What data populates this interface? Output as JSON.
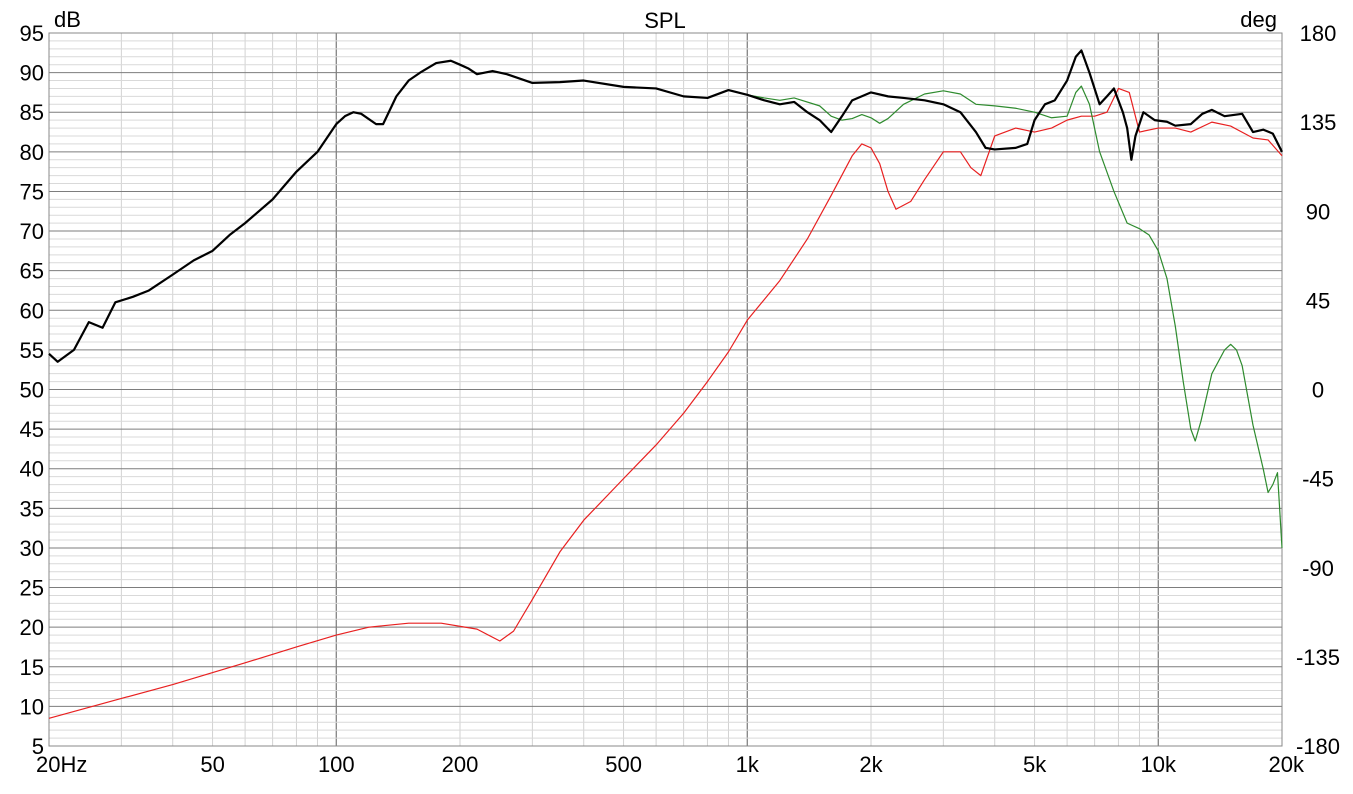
{
  "chart_data": {
    "type": "line",
    "title": "SPL",
    "ylabel": "dB",
    "y2label": "deg",
    "x_scale": "log",
    "xlim": [
      20,
      20000
    ],
    "ylim": [
      5,
      95
    ],
    "y2lim": [
      -180,
      180
    ],
    "grid": true,
    "x_ticks": [
      {
        "value": 20,
        "label": "20Hz"
      },
      {
        "value": 50,
        "label": "50"
      },
      {
        "value": 100,
        "label": "100"
      },
      {
        "value": 200,
        "label": "200"
      },
      {
        "value": 500,
        "label": "500"
      },
      {
        "value": 1000,
        "label": "1k"
      },
      {
        "value": 2000,
        "label": "2k"
      },
      {
        "value": 5000,
        "label": "5k"
      },
      {
        "value": 10000,
        "label": "10k"
      },
      {
        "value": 20000,
        "label": "20k"
      }
    ],
    "y_ticks": [
      "95",
      "90",
      "85",
      "80",
      "75",
      "70",
      "65",
      "60",
      "55",
      "50",
      "45",
      "40",
      "35",
      "30",
      "25",
      "20",
      "15",
      "10",
      "5"
    ],
    "y2_ticks": [
      "180",
      "135",
      "90",
      "45",
      "0",
      "-45",
      "-90",
      "-135",
      "-180"
    ],
    "series": [
      {
        "color": "#000000",
        "axis": "left",
        "points": [
          [
            20,
            54.5
          ],
          [
            21,
            53.5
          ],
          [
            23,
            55
          ],
          [
            25,
            58.5
          ],
          [
            27,
            57.8
          ],
          [
            29,
            61
          ],
          [
            32,
            61.7
          ],
          [
            35,
            62.5
          ],
          [
            40,
            64.5
          ],
          [
            45,
            66.3
          ],
          [
            50,
            67.5
          ],
          [
            55,
            69.5
          ],
          [
            60,
            71
          ],
          [
            70,
            74
          ],
          [
            80,
            77.5
          ],
          [
            90,
            80
          ],
          [
            100,
            83.5
          ],
          [
            105,
            84.5
          ],
          [
            110,
            85
          ],
          [
            115,
            84.8
          ],
          [
            125,
            83.5
          ],
          [
            130,
            83.5
          ],
          [
            140,
            87
          ],
          [
            150,
            89
          ],
          [
            160,
            90
          ],
          [
            175,
            91.2
          ],
          [
            190,
            91.5
          ],
          [
            200,
            91
          ],
          [
            210,
            90.5
          ],
          [
            220,
            89.8
          ],
          [
            240,
            90.2
          ],
          [
            260,
            89.8
          ],
          [
            300,
            88.7
          ],
          [
            350,
            88.8
          ],
          [
            400,
            89
          ],
          [
            500,
            88.2
          ],
          [
            600,
            88
          ],
          [
            700,
            87
          ],
          [
            800,
            86.8
          ],
          [
            900,
            87.8
          ],
          [
            1000,
            87.2
          ],
          [
            1100,
            86.5
          ],
          [
            1200,
            86
          ],
          [
            1300,
            86.3
          ],
          [
            1400,
            85
          ],
          [
            1500,
            84
          ],
          [
            1600,
            82.5
          ],
          [
            1700,
            84.5
          ],
          [
            1800,
            86.5
          ],
          [
            2000,
            87.5
          ],
          [
            2200,
            87
          ],
          [
            2400,
            86.8
          ],
          [
            2700,
            86.5
          ],
          [
            3000,
            86
          ],
          [
            3300,
            85
          ],
          [
            3600,
            82.5
          ],
          [
            3800,
            80.5
          ],
          [
            4000,
            80.3
          ],
          [
            4500,
            80.5
          ],
          [
            4800,
            81
          ],
          [
            5000,
            84
          ],
          [
            5300,
            86
          ],
          [
            5600,
            86.5
          ],
          [
            6000,
            89
          ],
          [
            6300,
            92
          ],
          [
            6500,
            92.8
          ],
          [
            6800,
            90
          ],
          [
            7200,
            86
          ],
          [
            7500,
            87
          ],
          [
            7800,
            88
          ],
          [
            8200,
            85
          ],
          [
            8400,
            83
          ],
          [
            8600,
            79
          ],
          [
            8800,
            82
          ],
          [
            9200,
            85
          ],
          [
            9800,
            84
          ],
          [
            10500,
            83.8
          ],
          [
            11000,
            83.3
          ],
          [
            12000,
            83.5
          ],
          [
            12800,
            84.8
          ],
          [
            13500,
            85.3
          ],
          [
            14500,
            84.5
          ],
          [
            16000,
            84.8
          ],
          [
            17000,
            82.5
          ],
          [
            18000,
            82.8
          ],
          [
            19000,
            82.3
          ],
          [
            20000,
            80
          ]
        ]
      },
      {
        "color": "#2e8b2e",
        "axis": "left",
        "points": [
          [
            20,
            54.5
          ],
          [
            21,
            53.5
          ],
          [
            23,
            55
          ],
          [
            25,
            58.5
          ],
          [
            27,
            57.8
          ],
          [
            29,
            61
          ],
          [
            32,
            61.7
          ],
          [
            35,
            62.5
          ],
          [
            40,
            64.5
          ],
          [
            45,
            66.3
          ],
          [
            50,
            67.5
          ],
          [
            55,
            69.5
          ],
          [
            60,
            71
          ],
          [
            70,
            74
          ],
          [
            80,
            77.5
          ],
          [
            90,
            80
          ],
          [
            100,
            83.5
          ],
          [
            105,
            84.5
          ],
          [
            110,
            85
          ],
          [
            115,
            84.8
          ],
          [
            125,
            83.5
          ],
          [
            130,
            83.5
          ],
          [
            140,
            87
          ],
          [
            150,
            89
          ],
          [
            160,
            90
          ],
          [
            175,
            91.2
          ],
          [
            190,
            91.5
          ],
          [
            200,
            91
          ],
          [
            210,
            90.5
          ],
          [
            220,
            89.8
          ],
          [
            240,
            90.2
          ],
          [
            260,
            89.8
          ],
          [
            300,
            88.7
          ],
          [
            350,
            88.8
          ],
          [
            400,
            89
          ],
          [
            500,
            88.2
          ],
          [
            600,
            88
          ],
          [
            700,
            87
          ],
          [
            800,
            86.8
          ],
          [
            900,
            87.8
          ],
          [
            1000,
            87.2
          ],
          [
            1100,
            86.8
          ],
          [
            1200,
            86.5
          ],
          [
            1300,
            86.8
          ],
          [
            1500,
            85.8
          ],
          [
            1600,
            84.5
          ],
          [
            1700,
            84
          ],
          [
            1800,
            84.2
          ],
          [
            1900,
            84.7
          ],
          [
            2000,
            84.3
          ],
          [
            2100,
            83.6
          ],
          [
            2200,
            84.2
          ],
          [
            2400,
            86
          ],
          [
            2700,
            87.3
          ],
          [
            3000,
            87.7
          ],
          [
            3300,
            87.3
          ],
          [
            3600,
            86
          ],
          [
            4000,
            85.8
          ],
          [
            4500,
            85.5
          ],
          [
            5000,
            85
          ],
          [
            5500,
            84.3
          ],
          [
            6000,
            84.5
          ],
          [
            6300,
            87.5
          ],
          [
            6500,
            88.3
          ],
          [
            6800,
            86
          ],
          [
            7200,
            80
          ],
          [
            7800,
            75
          ],
          [
            8400,
            71
          ],
          [
            9000,
            70.3
          ],
          [
            9500,
            69.5
          ],
          [
            10000,
            67.5
          ],
          [
            10500,
            64
          ],
          [
            11000,
            58
          ],
          [
            11500,
            51
          ],
          [
            12000,
            45
          ],
          [
            12300,
            43.5
          ],
          [
            12700,
            46
          ],
          [
            13500,
            52
          ],
          [
            14500,
            55
          ],
          [
            15000,
            55.7
          ],
          [
            15500,
            55
          ],
          [
            16000,
            53
          ],
          [
            17000,
            45.5
          ],
          [
            18000,
            40
          ],
          [
            18500,
            37
          ],
          [
            19000,
            38
          ],
          [
            19500,
            39.5
          ],
          [
            20000,
            30
          ]
        ]
      },
      {
        "color": "#e82020",
        "axis": "right",
        "points": [
          [
            20,
            -166
          ],
          [
            30,
            -156
          ],
          [
            40,
            -149
          ],
          [
            60,
            -138
          ],
          [
            80,
            -130
          ],
          [
            100,
            -124
          ],
          [
            120,
            -120
          ],
          [
            150,
            -118
          ],
          [
            180,
            -118
          ],
          [
            220,
            -121
          ],
          [
            250,
            -127
          ],
          [
            270,
            -122
          ],
          [
            300,
            -106
          ],
          [
            350,
            -82
          ],
          [
            400,
            -66
          ],
          [
            500,
            -45
          ],
          [
            600,
            -28
          ],
          [
            700,
            -12
          ],
          [
            800,
            4
          ],
          [
            900,
            19
          ],
          [
            1000,
            35
          ],
          [
            1200,
            55
          ],
          [
            1400,
            76
          ],
          [
            1600,
            98
          ],
          [
            1800,
            118
          ],
          [
            1900,
            124
          ],
          [
            2000,
            122
          ],
          [
            2100,
            114
          ],
          [
            2200,
            100
          ],
          [
            2300,
            91
          ],
          [
            2500,
            95
          ],
          [
            2700,
            106
          ],
          [
            3000,
            120
          ],
          [
            3300,
            120
          ],
          [
            3500,
            112
          ],
          [
            3700,
            108
          ],
          [
            4000,
            128
          ],
          [
            4500,
            132
          ],
          [
            5000,
            130
          ],
          [
            5500,
            132
          ],
          [
            6000,
            136
          ],
          [
            6500,
            138
          ],
          [
            7000,
            138
          ],
          [
            7500,
            140
          ],
          [
            8000,
            152
          ],
          [
            8500,
            150
          ],
          [
            9000,
            130
          ],
          [
            10000,
            132
          ],
          [
            11000,
            132
          ],
          [
            12000,
            130
          ],
          [
            13500,
            135
          ],
          [
            15000,
            133
          ],
          [
            17000,
            127
          ],
          [
            18500,
            126
          ],
          [
            20000,
            118
          ]
        ]
      }
    ]
  }
}
